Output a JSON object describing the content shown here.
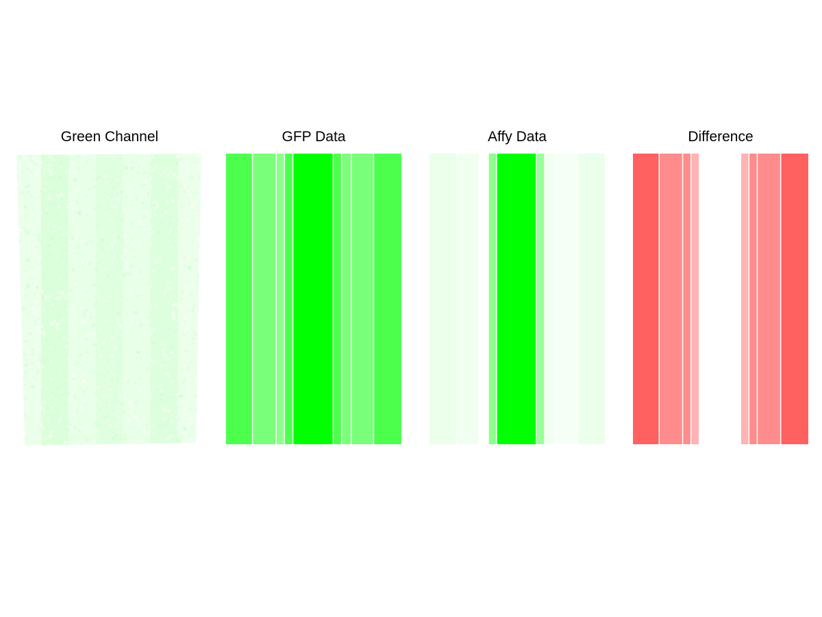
{
  "colors": {
    "green": "#00ff00",
    "red": "#ff0000",
    "separator": "#ffffff"
  },
  "chart_data": [
    {
      "type": "heatmap",
      "title": "Green Channel",
      "render": "textured-image",
      "description_of_bands": "faint green texture with slightly darker vertical bands",
      "band_intensity": [
        0.08,
        0.14,
        0.09,
        0.12,
        0.09,
        0.13,
        0.08
      ]
    },
    {
      "type": "heatmap",
      "title": "GFP Data",
      "color": "#00ff00",
      "stripe_widths": [
        38,
        34,
        12,
        12,
        58,
        12,
        14,
        32,
        40
      ],
      "intensity": [
        0.7,
        0.52,
        0.45,
        0.7,
        1.0,
        0.7,
        0.52,
        0.52,
        0.7
      ]
    },
    {
      "type": "heatmap",
      "title": "Affy Data",
      "color": "#00ff00",
      "stripe_widths": [
        40,
        32,
        14,
        12,
        58,
        12,
        16,
        32,
        40
      ],
      "intensity": [
        0.08,
        0.06,
        0.0,
        0.45,
        1.0,
        0.4,
        0.06,
        0.04,
        0.08
      ]
    },
    {
      "type": "heatmap",
      "title": "Difference",
      "color": "#ff0000",
      "stripe_widths": [
        38,
        34,
        12,
        12,
        60,
        12,
        12,
        34,
        40
      ],
      "intensity": [
        0.62,
        0.45,
        0.45,
        0.3,
        0.0,
        0.3,
        0.45,
        0.45,
        0.62
      ]
    }
  ]
}
